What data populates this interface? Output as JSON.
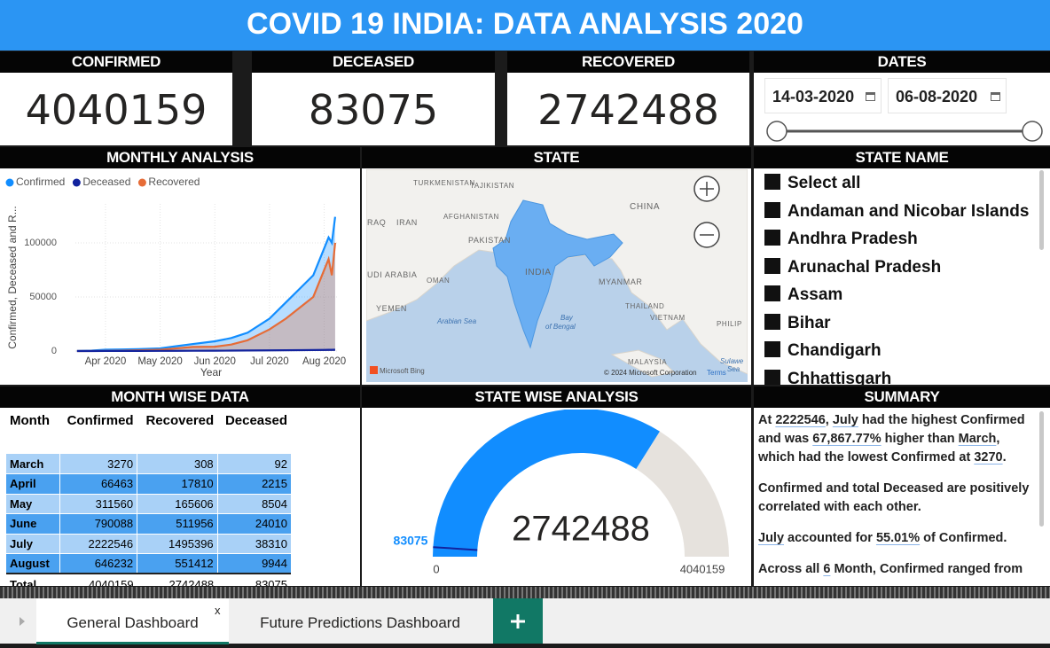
{
  "header": {
    "title": "COVID 19 INDIA: DATA ANALYSIS 2020"
  },
  "cards": [
    {
      "label": "CONFIRMED",
      "value": 4040159
    },
    {
      "label": "DECEASED",
      "value": 83075
    },
    {
      "label": "RECOVERED",
      "value": 2742488
    }
  ],
  "dates": {
    "label": "DATES",
    "start": "14-03-2020",
    "end": "06-08-2020"
  },
  "chart_data": {
    "type": "line",
    "title": "MONTHLY ANALYSIS",
    "x_label": "Year",
    "y_label": "Confirmed, Deceased and R...",
    "x": [
      3.48,
      3.75,
      4.0,
      4.3,
      4.6,
      5.0,
      5.3,
      5.6,
      6.0,
      6.3,
      6.6,
      7.0,
      7.3,
      7.6,
      7.8,
      8.0,
      8.08,
      8.14,
      8.2
    ],
    "xlim": [
      3.45,
      8.25
    ],
    "xticks": [
      {
        "value": 4,
        "label": "Apr 2020"
      },
      {
        "value": 5,
        "label": "May 2020"
      },
      {
        "value": 6,
        "label": "Jun 2020"
      },
      {
        "value": 7,
        "label": "Jul 2020"
      },
      {
        "value": 8,
        "label": "Aug 2020"
      }
    ],
    "ylim": [
      0,
      136000
    ],
    "yticks": [
      0,
      50000,
      100000
    ],
    "grid": true,
    "legend": "top-left",
    "series": [
      {
        "name": "Confirmed",
        "color": "#118dff",
        "values": [
          100,
          400,
          1200,
          1500,
          1800,
          2500,
          4500,
          6500,
          9000,
          12000,
          17000,
          30000,
          45000,
          60000,
          70000,
          95000,
          105000,
          100000,
          124000
        ]
      },
      {
        "name": "Deceased",
        "color": "#12239e",
        "values": [
          0,
          10,
          40,
          50,
          80,
          150,
          200,
          250,
          300,
          400,
          500,
          600,
          700,
          800,
          900,
          1000,
          1100,
          1100,
          1200
        ]
      },
      {
        "name": "Recovered",
        "color": "#e66c37",
        "values": [
          0,
          50,
          150,
          300,
          700,
          1200,
          2500,
          3800,
          4000,
          6000,
          10000,
          20000,
          30000,
          42000,
          50000,
          75000,
          85000,
          70000,
          100000
        ]
      }
    ]
  },
  "map": {
    "title": "STATE",
    "labels": [
      "TURKMENISTAN",
      "TAJIKISTAN",
      "RAQ",
      "IRAN",
      "AFGHANISTAN",
      "CHINA",
      "PAKISTAN",
      "INDIA",
      "UDI ARABIA",
      "OMAN",
      "MYANMAR",
      "YEMEN",
      "Arabian Sea",
      "Bay",
      "of Bengal",
      "THAILAND",
      "VIETNAM",
      "PHILIP",
      "MALAYSIA",
      "Sulawe",
      "Sea"
    ],
    "provider": "Microsoft Bing",
    "copyright": "© 2024 Microsoft Corporation",
    "terms": "Terms"
  },
  "state_filter": {
    "title": "STATE NAME",
    "items": [
      "Select all",
      "Andaman and Nicobar Islands",
      "Andhra Pradesh",
      "Arunachal Pradesh",
      "Assam",
      "Bihar",
      "Chandigarh",
      "Chhattisgarh"
    ]
  },
  "month_table": {
    "title": "MONTH WISE DATA",
    "columns": [
      "Month",
      "Confirmed",
      "Recovered",
      "Deceased"
    ],
    "rows": [
      [
        "March",
        3270,
        308,
        92
      ],
      [
        "April",
        66463,
        17810,
        2215
      ],
      [
        "May",
        311560,
        165606,
        8504
      ],
      [
        "June",
        790088,
        511956,
        24010
      ],
      [
        "July",
        2222546,
        1495396,
        38310
      ],
      [
        "August",
        646232,
        551412,
        9944
      ]
    ],
    "total": [
      "Total",
      4040159,
      2742488,
      83075
    ]
  },
  "gauge": {
    "title": "STATE WISE ANALYSIS",
    "value": 2742488,
    "min": 0,
    "max": 4040159,
    "target": 83075,
    "color": "#118dff",
    "track_color": "#e6e2dd",
    "target_color": "#12239e"
  },
  "summary": {
    "title": "SUMMARY",
    "paragraphs": [
      [
        "At ",
        {
          "text": "2222546",
          "underline": true
        },
        ", ",
        {
          "text": "July",
          "underline": true
        },
        " had the highest Confirmed and was ",
        {
          "text": "67,867.77%",
          "underline": true
        },
        " higher than ",
        {
          "text": "March",
          "underline": true
        },
        ", which had the lowest Confirmed at ",
        {
          "text": "3270",
          "underline": true
        },
        "."
      ],
      [
        "Confirmed and total Deceased are positively correlated with each other."
      ],
      [
        {
          "text": "July",
          "underline": true
        },
        " accounted for ",
        {
          "text": "55.01%",
          "underline": true
        },
        " of Confirmed."
      ],
      [
        "Across all ",
        {
          "text": "6",
          "underline": true
        },
        " Month, Confirmed ranged from"
      ]
    ]
  },
  "tabs": {
    "items": [
      "General Dashboard",
      "Future Predictions Dashboard"
    ],
    "close": "x"
  }
}
